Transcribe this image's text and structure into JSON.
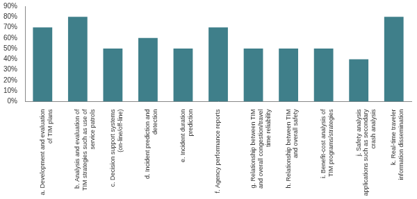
{
  "chart_data": {
    "type": "bar",
    "categories": [
      "a. Development and evaluation of TIM plans",
      "b. Analysis and evaluation of TIM strategies such as use of service patrols",
      "c. Decision support systems (on-line/off-line)",
      "d. Incident prediction and detection",
      "e. Incident duration prediction",
      "f. Agency performance reports",
      "g. Relationship between TIM and overall congestion/travel time reliability",
      "h. Relationship between TIM and overall safety",
      "i. Benefit-cost analysis of TIM programs/strategies",
      "j. Safety analysis applications such as secondary crash analysis",
      "k. Real-time traveler information dissemination"
    ],
    "values": [
      70,
      80,
      50,
      60,
      50,
      70,
      50,
      50,
      50,
      40,
      80
    ],
    "color": "#3f7f8a",
    "ylim": [
      0,
      90
    ],
    "yticks": [
      {
        "value": 0,
        "label": "0%"
      },
      {
        "value": 10,
        "label": "10%"
      },
      {
        "value": 20,
        "label": "20%"
      },
      {
        "value": 30,
        "label": "30%"
      },
      {
        "value": 40,
        "label": "40%"
      },
      {
        "value": 50,
        "label": "50%"
      },
      {
        "value": 60,
        "label": "60%"
      },
      {
        "value": 70,
        "label": "70%"
      },
      {
        "value": 80,
        "label": "80%"
      },
      {
        "value": 90,
        "label": "90%"
      }
    ],
    "grid": false
  }
}
